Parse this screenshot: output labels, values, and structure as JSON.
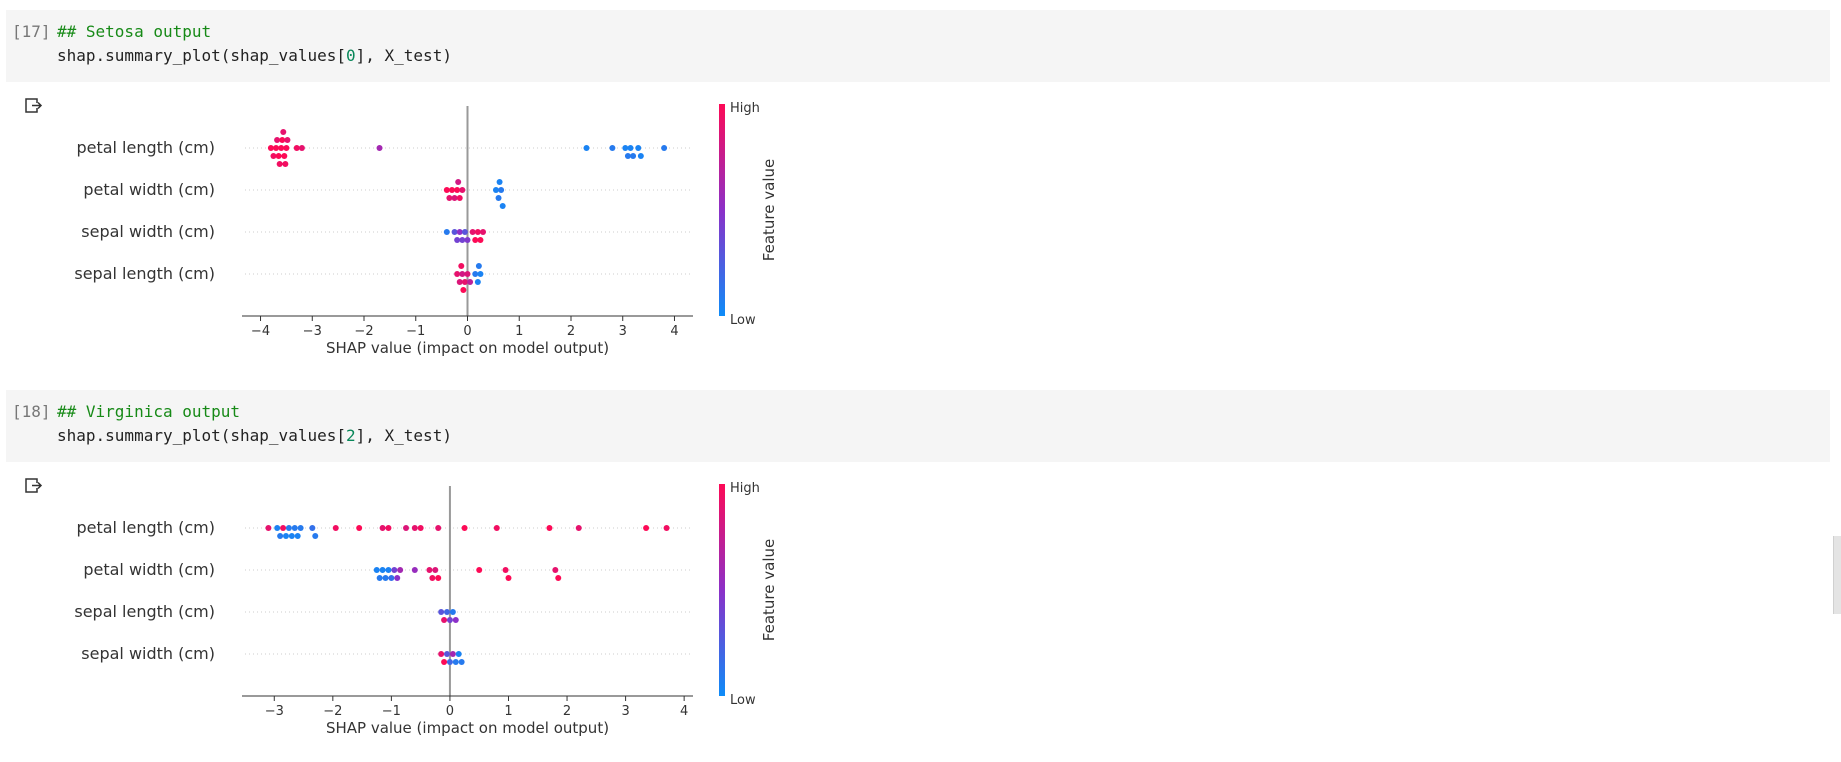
{
  "cells": [
    {
      "prompt": "[17]",
      "code_comment": "## Setosa output",
      "code_pre": "shap.summary_plot(shap_values[",
      "code_num": "0",
      "code_post": "], X_test)"
    },
    {
      "prompt": "[18]",
      "code_comment": "## Virginica output",
      "code_pre": "shap.summary_plot(shap_values[",
      "code_num": "2",
      "code_post": "], X_test)"
    }
  ],
  "colors": {
    "low": "#0d8cf8",
    "high": "#fd0a56",
    "mid": "#8c30c8",
    "zero_line": "#999999"
  },
  "output_icon": "output-arrow-icon",
  "chart_data": [
    {
      "type": "scatter",
      "subtype": "shap-beeswarm",
      "xlabel": "SHAP value (impact on model output)",
      "xlim": [
        -4.3,
        4.3
      ],
      "xticks": [
        -4,
        -3,
        -2,
        -1,
        0,
        1,
        2,
        3,
        4
      ],
      "colorbar": {
        "label": "Feature value",
        "high": "High",
        "low": "Low"
      },
      "features": [
        {
          "name": "petal length (cm)",
          "points": [
            [
              -3.8,
              1
            ],
            [
              -3.75,
              0.95
            ],
            [
              -3.7,
              1
            ],
            [
              -3.68,
              0.9
            ],
            [
              -3.65,
              1
            ],
            [
              -3.63,
              0.95
            ],
            [
              -3.6,
              1
            ],
            [
              -3.58,
              1
            ],
            [
              -3.56,
              0.9
            ],
            [
              -3.54,
              1
            ],
            [
              -3.52,
              0.95
            ],
            [
              -3.5,
              1
            ],
            [
              -3.48,
              0.9
            ],
            [
              -3.3,
              0.95
            ],
            [
              -3.2,
              0.9
            ],
            [
              -1.7,
              0.6
            ],
            [
              2.3,
              0.05
            ],
            [
              2.8,
              0.1
            ],
            [
              3.05,
              0.05
            ],
            [
              3.1,
              0.1
            ],
            [
              3.15,
              0.05
            ],
            [
              3.2,
              0.1
            ],
            [
              3.3,
              0.05
            ],
            [
              3.35,
              0.05
            ],
            [
              3.8,
              0.1
            ]
          ]
        },
        {
          "name": "petal width (cm)",
          "points": [
            [
              -0.4,
              1
            ],
            [
              -0.35,
              0.9
            ],
            [
              -0.3,
              1
            ],
            [
              -0.25,
              0.85
            ],
            [
              -0.2,
              1
            ],
            [
              -0.18,
              0.8
            ],
            [
              -0.15,
              0.95
            ],
            [
              -0.1,
              0.9
            ],
            [
              0.55,
              0.05
            ],
            [
              0.6,
              0.1
            ],
            [
              0.62,
              0.05
            ],
            [
              0.65,
              0.1
            ],
            [
              0.68,
              0.05
            ]
          ]
        },
        {
          "name": "sepal width (cm)",
          "points": [
            [
              -0.4,
              0.1
            ],
            [
              -0.25,
              0.3
            ],
            [
              -0.2,
              0.4
            ],
            [
              -0.15,
              0.5
            ],
            [
              -0.1,
              0.4
            ],
            [
              -0.05,
              0.3
            ],
            [
              0,
              0.45
            ],
            [
              0.1,
              0.9
            ],
            [
              0.15,
              1
            ],
            [
              0.2,
              0.95
            ],
            [
              0.25,
              1
            ],
            [
              0.3,
              0.9
            ]
          ]
        },
        {
          "name": "sepal length (cm)",
          "points": [
            [
              -0.2,
              0.9
            ],
            [
              -0.15,
              0.85
            ],
            [
              -0.12,
              0.95
            ],
            [
              -0.1,
              0.8
            ],
            [
              -0.08,
              1
            ],
            [
              -0.05,
              0.9
            ],
            [
              0,
              0.85
            ],
            [
              0.05,
              0.7
            ],
            [
              0.15,
              0.1
            ],
            [
              0.2,
              0.05
            ],
            [
              0.22,
              0.1
            ],
            [
              0.25,
              0.05
            ]
          ]
        }
      ]
    },
    {
      "type": "scatter",
      "subtype": "shap-beeswarm",
      "xlabel": "SHAP value (impact on model output)",
      "xlim": [
        -3.5,
        4.1
      ],
      "xticks": [
        -3,
        -2,
        -1,
        0,
        1,
        2,
        3,
        4
      ],
      "colorbar": {
        "label": "Feature value",
        "high": "High",
        "low": "Low"
      },
      "features": [
        {
          "name": "petal length (cm)",
          "points": [
            [
              -3.1,
              0.9
            ],
            [
              -2.95,
              0.05
            ],
            [
              -2.9,
              0.1
            ],
            [
              -2.85,
              0.95
            ],
            [
              -2.8,
              0.05
            ],
            [
              -2.75,
              0.1
            ],
            [
              -2.7,
              0.05
            ],
            [
              -2.65,
              0.1
            ],
            [
              -2.6,
              0.05
            ],
            [
              -2.55,
              0.1
            ],
            [
              -2.35,
              0.15
            ],
            [
              -2.3,
              0.1
            ],
            [
              -1.95,
              0.95
            ],
            [
              -1.55,
              1
            ],
            [
              -1.15,
              0.9
            ],
            [
              -1.05,
              0.95
            ],
            [
              -0.75,
              0.85
            ],
            [
              -0.6,
              0.9
            ],
            [
              -0.5,
              0.95
            ],
            [
              -0.2,
              0.9
            ],
            [
              0.25,
              1
            ],
            [
              0.8,
              0.95
            ],
            [
              1.7,
              1
            ],
            [
              2.2,
              0.9
            ],
            [
              3.35,
              1
            ],
            [
              3.7,
              0.95
            ]
          ]
        },
        {
          "name": "petal width (cm)",
          "points": [
            [
              -1.25,
              0.05
            ],
            [
              -1.2,
              0.1
            ],
            [
              -1.15,
              0.05
            ],
            [
              -1.1,
              0.1
            ],
            [
              -1.05,
              0.05
            ],
            [
              -1.0,
              0.15
            ],
            [
              -0.95,
              0.4
            ],
            [
              -0.9,
              0.5
            ],
            [
              -0.85,
              0.6
            ],
            [
              -0.6,
              0.55
            ],
            [
              -0.35,
              0.9
            ],
            [
              -0.3,
              0.95
            ],
            [
              -0.25,
              0.85
            ],
            [
              -0.2,
              1
            ],
            [
              0.5,
              1
            ],
            [
              0.95,
              0.95
            ],
            [
              1.0,
              1
            ],
            [
              1.8,
              0.9
            ],
            [
              1.85,
              1
            ]
          ]
        },
        {
          "name": "sepal length (cm)",
          "points": [
            [
              -0.15,
              0.3
            ],
            [
              -0.1,
              0.9
            ],
            [
              -0.05,
              0.2
            ],
            [
              0,
              0.4
            ],
            [
              0.05,
              0.1
            ],
            [
              0.1,
              0.5
            ]
          ]
        },
        {
          "name": "sepal width (cm)",
          "points": [
            [
              -0.15,
              0.9
            ],
            [
              -0.1,
              1
            ],
            [
              -0.05,
              0.3
            ],
            [
              0,
              0.2
            ],
            [
              0.05,
              0.6
            ],
            [
              0.1,
              0.1
            ],
            [
              0.15,
              0.05
            ],
            [
              0.2,
              0.1
            ]
          ]
        }
      ]
    }
  ]
}
